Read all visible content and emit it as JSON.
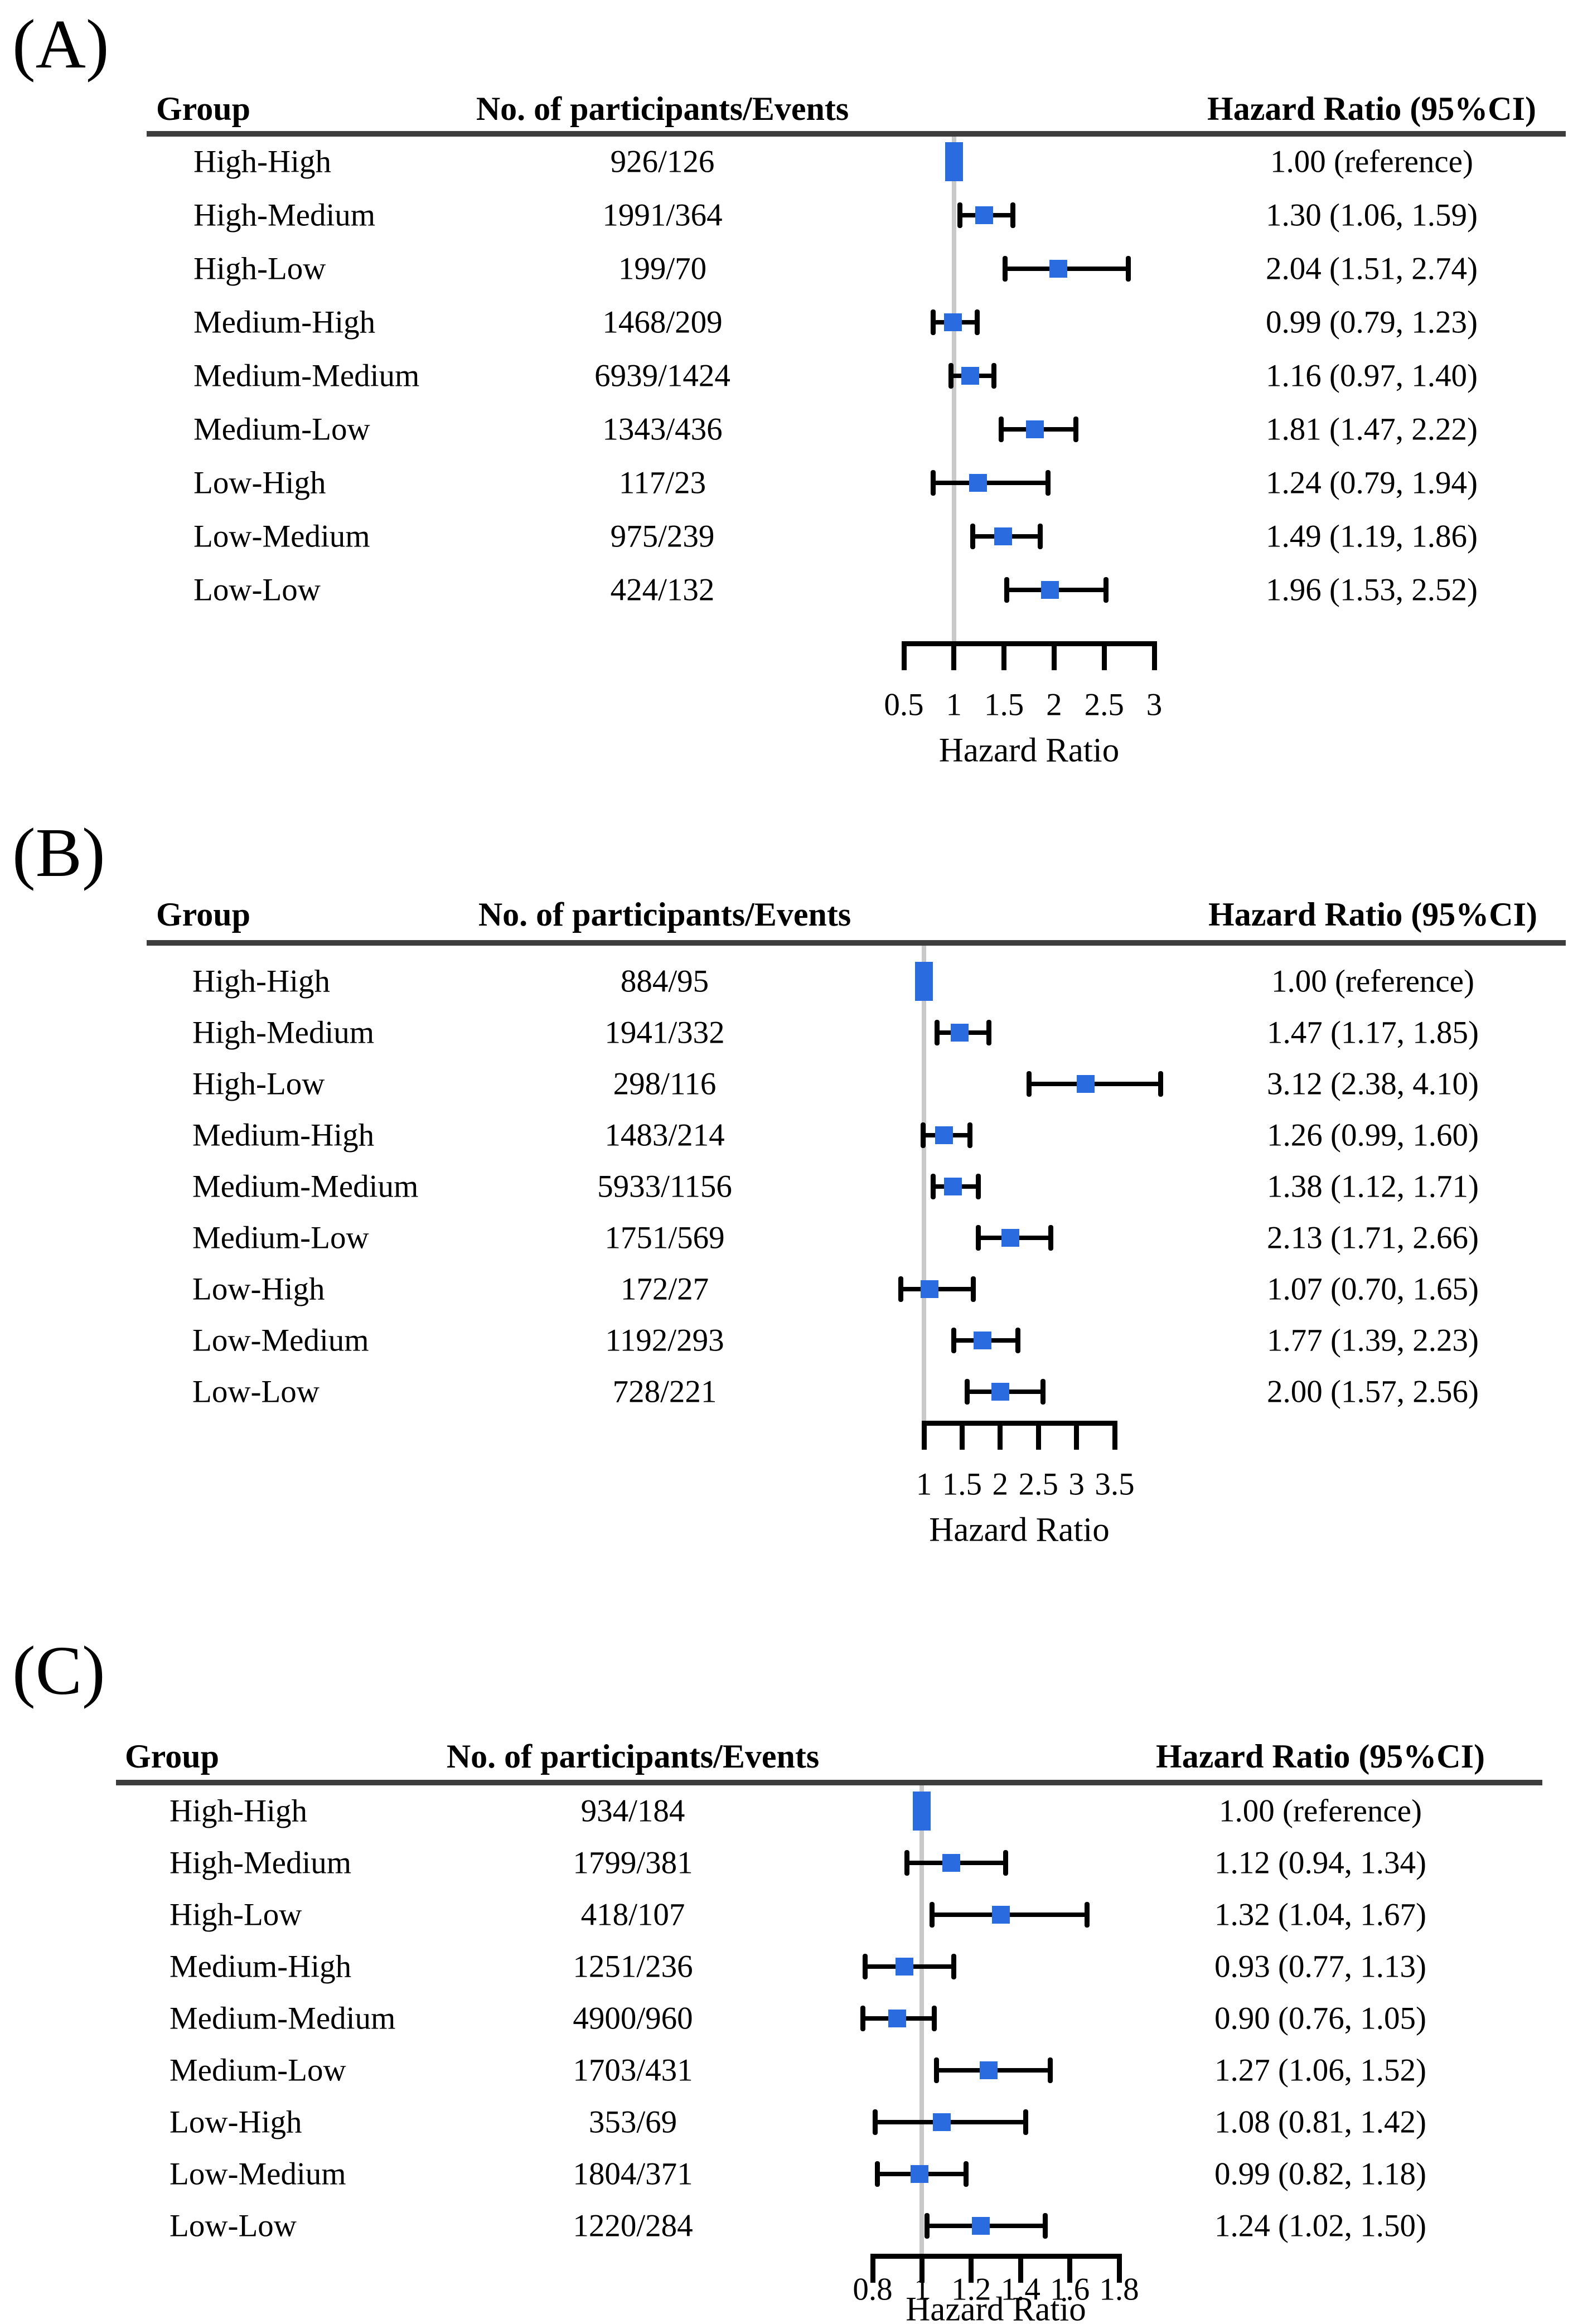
{
  "page": {
    "background": "#ffffff"
  },
  "colors": {
    "marker_blue": "#2b6be0",
    "ci_black": "#000000",
    "ref_line_gray": "#c9c9c9",
    "header_rule_gray": "#3d3d3d",
    "text_black": "#000000"
  },
  "chart_data": [
    {
      "type": "scatter",
      "subtype": "forest-plot",
      "panel_label": "(A)",
      "columns": {
        "group": "Group",
        "events": "No. of participants/Events",
        "hr": "Hazard Ratio (95%CI)"
      },
      "axis": {
        "label": "Hazard Ratio",
        "min": 0.5,
        "max": 3.0,
        "scale": "linear",
        "reference_line": 1.0,
        "tick_values": [
          0.5,
          1,
          1.5,
          2,
          2.5,
          3
        ],
        "tick_labels": [
          "0.5",
          "1",
          "1.5",
          "2",
          "2.5",
          "3"
        ]
      },
      "rows": [
        {
          "group": "High-High",
          "events": "926/126",
          "hr_label": "1.00 (reference)",
          "hr": 1.0,
          "ci_low": null,
          "ci_high": null
        },
        {
          "group": "High-Medium",
          "events": "1991/364",
          "hr_label": "1.30 (1.06, 1.59)",
          "hr": 1.3,
          "ci_low": 1.06,
          "ci_high": 1.59
        },
        {
          "group": "High-Low",
          "events": "199/70",
          "hr_label": "2.04 (1.51, 2.74)",
          "hr": 2.04,
          "ci_low": 1.51,
          "ci_high": 2.74
        },
        {
          "group": "Medium-High",
          "events": "1468/209",
          "hr_label": "0.99 (0.79, 1.23)",
          "hr": 0.99,
          "ci_low": 0.79,
          "ci_high": 1.23
        },
        {
          "group": "Medium-Medium",
          "events": "6939/1424",
          "hr_label": "1.16 (0.97, 1.40)",
          "hr": 1.16,
          "ci_low": 0.97,
          "ci_high": 1.4
        },
        {
          "group": "Medium-Low",
          "events": "1343/436",
          "hr_label": "1.81 (1.47, 2.22)",
          "hr": 1.81,
          "ci_low": 1.47,
          "ci_high": 2.22
        },
        {
          "group": "Low-High",
          "events": "117/23",
          "hr_label": "1.24 (0.79, 1.94)",
          "hr": 1.24,
          "ci_low": 0.79,
          "ci_high": 1.94
        },
        {
          "group": "Low-Medium",
          "events": "975/239",
          "hr_label": "1.49 (1.19, 1.86)",
          "hr": 1.49,
          "ci_low": 1.19,
          "ci_high": 1.86
        },
        {
          "group": "Low-Low",
          "events": "424/132",
          "hr_label": "1.96 (1.53, 2.52)",
          "hr": 1.96,
          "ci_low": 1.53,
          "ci_high": 2.52
        }
      ]
    },
    {
      "type": "scatter",
      "subtype": "forest-plot",
      "panel_label": "(B)",
      "columns": {
        "group": "Group",
        "events": "No. of participants/Events",
        "hr": "Hazard Ratio (95%CI)"
      },
      "axis": {
        "label": "Hazard Ratio",
        "min": 1.0,
        "max": 3.5,
        "scale": "linear",
        "reference_line": 1.0,
        "tick_values": [
          1,
          1.5,
          2,
          2.5,
          3,
          3.5
        ],
        "tick_labels": [
          "1",
          "1.5",
          "2",
          "2.5",
          "3",
          "3.5"
        ]
      },
      "rows": [
        {
          "group": "High-High",
          "events": "884/95",
          "hr_label": "1.00 (reference)",
          "hr": 1.0,
          "ci_low": null,
          "ci_high": null
        },
        {
          "group": "High-Medium",
          "events": "1941/332",
          "hr_label": "1.47 (1.17, 1.85)",
          "hr": 1.47,
          "ci_low": 1.17,
          "ci_high": 1.85
        },
        {
          "group": "High-Low",
          "events": "298/116",
          "hr_label": "3.12 (2.38, 4.10)",
          "hr": 3.12,
          "ci_low": 2.38,
          "ci_high": 4.1
        },
        {
          "group": "Medium-High",
          "events": "1483/214",
          "hr_label": "1.26 (0.99, 1.60)",
          "hr": 1.26,
          "ci_low": 0.99,
          "ci_high": 1.6
        },
        {
          "group": "Medium-Medium",
          "events": "5933/1156",
          "hr_label": "1.38 (1.12, 1.71)",
          "hr": 1.38,
          "ci_low": 1.12,
          "ci_high": 1.71
        },
        {
          "group": "Medium-Low",
          "events": "1751/569",
          "hr_label": "2.13 (1.71, 2.66)",
          "hr": 2.13,
          "ci_low": 1.71,
          "ci_high": 2.66
        },
        {
          "group": "Low-High",
          "events": "172/27",
          "hr_label": "1.07 (0.70, 1.65)",
          "hr": 1.07,
          "ci_low": 0.7,
          "ci_high": 1.65
        },
        {
          "group": "Low-Medium",
          "events": "1192/293",
          "hr_label": "1.77 (1.39, 2.23)",
          "hr": 1.77,
          "ci_low": 1.39,
          "ci_high": 2.23
        },
        {
          "group": "Low-Low",
          "events": "728/221",
          "hr_label": "2.00 (1.57, 2.56)",
          "hr": 2.0,
          "ci_low": 1.57,
          "ci_high": 2.56
        }
      ]
    },
    {
      "type": "scatter",
      "subtype": "forest-plot",
      "panel_label": "(C)",
      "columns": {
        "group": "Group",
        "events": "No. of participants/Events",
        "hr": "Hazard Ratio (95%CI)"
      },
      "axis": {
        "label": "Hazard Ratio",
        "min": 0.8,
        "max": 1.8,
        "scale": "linear",
        "reference_line": 1.0,
        "tick_values": [
          0.8,
          1,
          1.2,
          1.4,
          1.6,
          1.8
        ],
        "tick_labels": [
          "0.8",
          "1",
          "1.2",
          "1.4",
          "1.6",
          "1.8"
        ]
      },
      "rows": [
        {
          "group": "High-High",
          "events": "934/184",
          "hr_label": "1.00 (reference)",
          "hr": 1.0,
          "ci_low": null,
          "ci_high": null
        },
        {
          "group": "High-Medium",
          "events": "1799/381",
          "hr_label": "1.12 (0.94, 1.34)",
          "hr": 1.12,
          "ci_low": 0.94,
          "ci_high": 1.34
        },
        {
          "group": "High-Low",
          "events": "418/107",
          "hr_label": "1.32 (1.04, 1.67)",
          "hr": 1.32,
          "ci_low": 1.04,
          "ci_high": 1.67
        },
        {
          "group": "Medium-High",
          "events": "1251/236",
          "hr_label": "0.93 (0.77, 1.13)",
          "hr": 0.93,
          "ci_low": 0.77,
          "ci_high": 1.13
        },
        {
          "group": "Medium-Medium",
          "events": "4900/960",
          "hr_label": "0.90 (0.76, 1.05)",
          "hr": 0.9,
          "ci_low": 0.76,
          "ci_high": 1.05
        },
        {
          "group": "Medium-Low",
          "events": "1703/431",
          "hr_label": "1.27 (1.06, 1.52)",
          "hr": 1.27,
          "ci_low": 1.06,
          "ci_high": 1.52
        },
        {
          "group": "Low-High",
          "events": "353/69",
          "hr_label": "1.08 (0.81, 1.42)",
          "hr": 1.08,
          "ci_low": 0.81,
          "ci_high": 1.42
        },
        {
          "group": "Low-Medium",
          "events": "1804/371",
          "hr_label": "0.99 (0.82, 1.18)",
          "hr": 0.99,
          "ci_low": 0.82,
          "ci_high": 1.18
        },
        {
          "group": "Low-Low",
          "events": "1220/284",
          "hr_label": "1.24 (1.02, 1.50)",
          "hr": 1.24,
          "ci_low": 1.02,
          "ci_high": 1.5
        }
      ]
    }
  ]
}
